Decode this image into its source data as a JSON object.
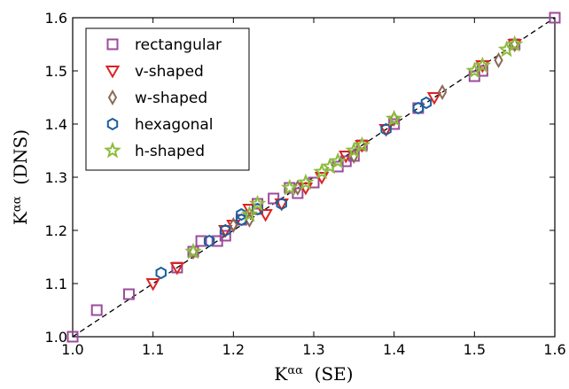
{
  "chart_data": {
    "type": "scatter",
    "xlabel": {
      "main": "K",
      "sup": "αα",
      "tail": "  (SE)"
    },
    "ylabel": {
      "main": "K",
      "sup": "αα",
      "tail": "  (DNS)"
    },
    "xlim": [
      1.0,
      1.6
    ],
    "ylim": [
      1.0,
      1.6
    ],
    "xticks": [
      "1.0",
      "1.1",
      "1.2",
      "1.3",
      "1.4",
      "1.5",
      "1.6"
    ],
    "yticks": [
      "1.0",
      "1.1",
      "1.2",
      "1.3",
      "1.4",
      "1.5",
      "1.6"
    ],
    "grid": false,
    "legend_position": "top-left",
    "reference_line": {
      "style": "dashed",
      "color": "#000000",
      "from": [
        1.0,
        1.0
      ],
      "to": [
        1.6,
        1.6
      ]
    },
    "series": [
      {
        "name": "rectangular",
        "marker": "square",
        "color": "#9b4b9b",
        "points": [
          [
            1.0,
            1.0
          ],
          [
            1.03,
            1.05
          ],
          [
            1.07,
            1.08
          ],
          [
            1.13,
            1.13
          ],
          [
            1.15,
            1.16
          ],
          [
            1.16,
            1.18
          ],
          [
            1.18,
            1.18
          ],
          [
            1.19,
            1.19
          ],
          [
            1.21,
            1.22
          ],
          [
            1.23,
            1.24
          ],
          [
            1.23,
            1.25
          ],
          [
            1.25,
            1.26
          ],
          [
            1.27,
            1.28
          ],
          [
            1.28,
            1.27
          ],
          [
            1.3,
            1.29
          ],
          [
            1.33,
            1.32
          ],
          [
            1.34,
            1.33
          ],
          [
            1.35,
            1.34
          ],
          [
            1.36,
            1.36
          ],
          [
            1.4,
            1.4
          ],
          [
            1.43,
            1.43
          ],
          [
            1.5,
            1.49
          ],
          [
            1.51,
            1.5
          ],
          [
            1.55,
            1.55
          ],
          [
            1.6,
            1.6
          ]
        ]
      },
      {
        "name": "v-shaped",
        "marker": "triangle-down",
        "color": "#dd2222",
        "points": [
          [
            1.1,
            1.1
          ],
          [
            1.13,
            1.13
          ],
          [
            1.19,
            1.2
          ],
          [
            1.2,
            1.21
          ],
          [
            1.22,
            1.24
          ],
          [
            1.24,
            1.23
          ],
          [
            1.26,
            1.25
          ],
          [
            1.29,
            1.28
          ],
          [
            1.31,
            1.3
          ],
          [
            1.34,
            1.34
          ],
          [
            1.36,
            1.36
          ],
          [
            1.39,
            1.39
          ],
          [
            1.45,
            1.45
          ],
          [
            1.51,
            1.51
          ],
          [
            1.55,
            1.55
          ]
        ]
      },
      {
        "name": "w-shaped",
        "marker": "diamond",
        "color": "#8b6a55",
        "points": [
          [
            1.15,
            1.16
          ],
          [
            1.2,
            1.21
          ],
          [
            1.22,
            1.22
          ],
          [
            1.28,
            1.28
          ],
          [
            1.35,
            1.34
          ],
          [
            1.4,
            1.41
          ],
          [
            1.46,
            1.46
          ],
          [
            1.53,
            1.52
          ],
          [
            1.55,
            1.55
          ]
        ]
      },
      {
        "name": "hexagonal",
        "marker": "hexagon",
        "color": "#1a5f9e",
        "points": [
          [
            1.11,
            1.12
          ],
          [
            1.17,
            1.18
          ],
          [
            1.19,
            1.2
          ],
          [
            1.21,
            1.23
          ],
          [
            1.21,
            1.22
          ],
          [
            1.23,
            1.24
          ],
          [
            1.26,
            1.25
          ],
          [
            1.39,
            1.39
          ],
          [
            1.43,
            1.43
          ],
          [
            1.44,
            1.44
          ]
        ]
      },
      {
        "name": "h-shaped",
        "marker": "star",
        "color": "#8dbb3c",
        "points": [
          [
            1.15,
            1.16
          ],
          [
            1.22,
            1.23
          ],
          [
            1.23,
            1.25
          ],
          [
            1.27,
            1.28
          ],
          [
            1.29,
            1.29
          ],
          [
            1.31,
            1.31
          ],
          [
            1.32,
            1.32
          ],
          [
            1.33,
            1.33
          ],
          [
            1.35,
            1.35
          ],
          [
            1.36,
            1.36
          ],
          [
            1.4,
            1.41
          ],
          [
            1.5,
            1.5
          ],
          [
            1.51,
            1.51
          ],
          [
            1.54,
            1.54
          ],
          [
            1.55,
            1.55
          ]
        ]
      }
    ]
  }
}
